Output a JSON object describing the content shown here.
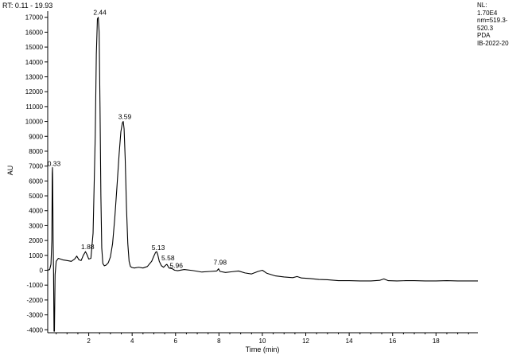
{
  "header": {
    "rt_range": "RT: 0.11 - 19.93"
  },
  "info_block": [
    "NL:",
    "1.70E4",
    "nm=519.3-",
    "520.3",
    "PDA",
    "IB-2022-20"
  ],
  "chart_data": {
    "type": "line",
    "title": "",
    "xlabel": "Time (min)",
    "ylabel": "AU",
    "xlim": [
      0.11,
      19.93
    ],
    "ylim": [
      -4200,
      17200
    ],
    "x_ticks": [
      2,
      4,
      6,
      8,
      10,
      12,
      14,
      16,
      18
    ],
    "x_tick_labels": [
      "2",
      "4",
      "6",
      "8",
      "10",
      "12",
      "14",
      "16",
      "18"
    ],
    "y_ticks": [
      -4000,
      -3000,
      -2000,
      -1000,
      0,
      1000,
      2000,
      3000,
      4000,
      5000,
      6000,
      7000,
      8000,
      9000,
      10000,
      11000,
      12000,
      13000,
      14000,
      15000,
      16000,
      17000
    ],
    "y_tick_labels": [
      "-4000",
      "-3000",
      "-2000",
      "-1000",
      "0",
      "1000",
      "2000",
      "3000",
      "4000",
      "5000",
      "6000",
      "7000",
      "8000",
      "9000",
      "10000",
      "11000",
      "12000",
      "13000",
      "14000",
      "15000",
      "16000",
      "17000"
    ],
    "peak_labels": [
      {
        "text": "0.33",
        "x": 0.33,
        "y": 6800
      },
      {
        "text": "1.88",
        "x": 1.88,
        "y": 1200
      },
      {
        "text": "2.44",
        "x": 2.44,
        "y": 16950
      },
      {
        "text": "3.59",
        "x": 3.59,
        "y": 9950
      },
      {
        "text": "5.13",
        "x": 5.13,
        "y": 1150
      },
      {
        "text": "5.58",
        "x": 5.58,
        "y": 450
      },
      {
        "text": "5.96",
        "x": 5.96,
        "y": -50
      },
      {
        "text": "7.98",
        "x": 7.98,
        "y": 150
      }
    ],
    "series": [
      {
        "color": "#000000",
        "x": [
          0.11,
          0.2,
          0.26,
          0.3,
          0.32,
          0.33,
          0.34,
          0.36,
          0.38,
          0.4,
          0.42,
          0.45,
          0.5,
          0.6,
          0.8,
          1.0,
          1.2,
          1.35,
          1.45,
          1.55,
          1.65,
          1.75,
          1.85,
          1.92,
          2.0,
          2.1,
          2.2,
          2.3,
          2.35,
          2.4,
          2.44,
          2.48,
          2.52,
          2.56,
          2.6,
          2.65,
          2.72,
          2.8,
          2.9,
          3.0,
          3.1,
          3.2,
          3.3,
          3.4,
          3.48,
          3.55,
          3.59,
          3.63,
          3.68,
          3.74,
          3.8,
          3.86,
          3.92,
          4.0,
          4.1,
          4.3,
          4.5,
          4.7,
          4.9,
          5.0,
          5.08,
          5.13,
          5.18,
          5.25,
          5.35,
          5.45,
          5.55,
          5.6,
          5.7,
          5.85,
          5.96,
          6.1,
          6.4,
          6.8,
          7.2,
          7.6,
          7.9,
          7.98,
          8.05,
          8.3,
          8.6,
          8.9,
          9.2,
          9.5,
          9.8,
          10.0,
          10.2,
          10.6,
          11.0,
          11.4,
          11.6,
          11.8,
          12.2,
          12.6,
          13.0,
          13.5,
          14.0,
          14.5,
          15.0,
          15.4,
          15.6,
          15.8,
          16.2,
          16.6,
          17.0,
          17.5,
          18.0,
          18.5,
          19.0,
          19.5,
          19.93
        ],
        "y": [
          0,
          50,
          400,
          2000,
          6500,
          6900,
          6000,
          2000,
          -200,
          -4100,
          -4100,
          -300,
          600,
          800,
          700,
          650,
          600,
          750,
          950,
          700,
          650,
          1000,
          1250,
          1050,
          750,
          800,
          2500,
          9000,
          14500,
          16900,
          17000,
          16000,
          11000,
          5000,
          1500,
          450,
          300,
          350,
          500,
          900,
          1800,
          3500,
          5600,
          7800,
          9300,
          9900,
          10000,
          9500,
          7500,
          4200,
          1800,
          600,
          250,
          180,
          150,
          200,
          150,
          250,
          600,
          950,
          1200,
          1250,
          1050,
          600,
          300,
          200,
          350,
          400,
          150,
          100,
          0,
          -30,
          50,
          -20,
          -120,
          -80,
          -50,
          100,
          -80,
          -150,
          -100,
          -50,
          -180,
          -250,
          -80,
          0,
          -200,
          -380,
          -450,
          -500,
          -420,
          -520,
          -560,
          -620,
          -640,
          -700,
          -700,
          -720,
          -720,
          -680,
          -580,
          -700,
          -720,
          -700,
          -700,
          -720,
          -720,
          -700,
          -720,
          -720,
          -720
        ]
      }
    ]
  }
}
